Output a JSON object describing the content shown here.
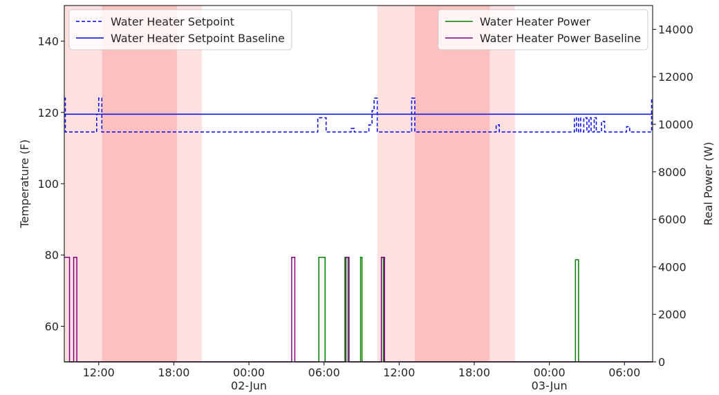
{
  "chart_data": {
    "type": "line",
    "title": "",
    "xlabel": "",
    "ylabel_left": "Temperature (F)",
    "ylabel_right": "Real Power (W)",
    "x_range": [
      "2023-06-01T09:15",
      "2023-06-03T08:15"
    ],
    "y_left_range": [
      50,
      150
    ],
    "y_right_range": [
      0,
      15000
    ],
    "x_ticks": [
      {
        "t": "2023-06-01T12:00",
        "label": "12:00",
        "sublabel": ""
      },
      {
        "t": "2023-06-01T18:00",
        "label": "18:00",
        "sublabel": ""
      },
      {
        "t": "2023-06-02T00:00",
        "label": "00:00",
        "sublabel": "02-Jun"
      },
      {
        "t": "2023-06-02T06:00",
        "label": "06:00",
        "sublabel": ""
      },
      {
        "t": "2023-06-02T12:00",
        "label": "12:00",
        "sublabel": ""
      },
      {
        "t": "2023-06-02T18:00",
        "label": "18:00",
        "sublabel": ""
      },
      {
        "t": "2023-06-03T00:00",
        "label": "00:00",
        "sublabel": "03-Jun"
      },
      {
        "t": "2023-06-03T06:00",
        "label": "06:00",
        "sublabel": ""
      }
    ],
    "y_left_ticks": [
      60,
      80,
      100,
      120,
      140
    ],
    "y_right_ticks": [
      0,
      2000,
      4000,
      6000,
      8000,
      10000,
      12000,
      14000
    ],
    "shaded_regions": [
      {
        "start": "2023-06-01T09:15",
        "end": "2023-06-01T12:15",
        "color": "#fde1e1"
      },
      {
        "start": "2023-06-01T12:15",
        "end": "2023-06-01T18:15",
        "color": "#fcc0c0"
      },
      {
        "start": "2023-06-01T18:15",
        "end": "2023-06-01T20:15",
        "color": "#fde1e1"
      },
      {
        "start": "2023-06-02T10:15",
        "end": "2023-06-02T13:15",
        "color": "#fde1e1"
      },
      {
        "start": "2023-06-02T13:15",
        "end": "2023-06-02T19:15",
        "color": "#fcc0c0"
      },
      {
        "start": "2023-06-02T19:15",
        "end": "2023-06-02T21:15",
        "color": "#fde1e1"
      }
    ],
    "series": [
      {
        "name": "Water Heater Setpoint",
        "axis": "left",
        "color": "#0000ff",
        "style": "dashed",
        "step": true,
        "points": [
          [
            "2023-06-01T09:15",
            124
          ],
          [
            "2023-06-01T09:20",
            114.5
          ],
          [
            "2023-06-01T11:50",
            119.5
          ],
          [
            "2023-06-01T12:00",
            124
          ],
          [
            "2023-06-01T12:15",
            114.5
          ],
          [
            "2023-06-02T05:30",
            118.5
          ],
          [
            "2023-06-02T06:10",
            114.5
          ],
          [
            "2023-06-02T08:10",
            115.5
          ],
          [
            "2023-06-02T08:25",
            114.5
          ],
          [
            "2023-06-02T09:35",
            116.5
          ],
          [
            "2023-06-02T09:50",
            120.5
          ],
          [
            "2023-06-02T10:00",
            124
          ],
          [
            "2023-06-02T10:15",
            114.5
          ],
          [
            "2023-06-02T13:00",
            124
          ],
          [
            "2023-06-02T13:15",
            114.5
          ],
          [
            "2023-06-02T19:45",
            116.5
          ],
          [
            "2023-06-02T20:00",
            114.5
          ],
          [
            "2023-06-03T02:00",
            118.5
          ],
          [
            "2023-06-03T02:10",
            114.5
          ],
          [
            "2023-06-03T02:20",
            118.5
          ],
          [
            "2023-06-03T02:30",
            114.5
          ],
          [
            "2023-06-03T02:45",
            118.5
          ],
          [
            "2023-06-03T03:00",
            114.5
          ],
          [
            "2023-06-03T03:10",
            118.5
          ],
          [
            "2023-06-03T03:20",
            114.5
          ],
          [
            "2023-06-03T03:35",
            118.5
          ],
          [
            "2023-06-03T03:45",
            114.5
          ],
          [
            "2023-06-03T04:10",
            117.5
          ],
          [
            "2023-06-03T04:25",
            114.5
          ],
          [
            "2023-06-03T06:10",
            116
          ],
          [
            "2023-06-03T06:25",
            114.5
          ],
          [
            "2023-06-03T08:10",
            124
          ],
          [
            "2023-06-03T08:15",
            124
          ]
        ]
      },
      {
        "name": "Water Heater Setpoint Baseline",
        "axis": "left",
        "color": "#0000ff",
        "style": "solid",
        "step": true,
        "points": [
          [
            "2023-06-01T09:15",
            119.5
          ],
          [
            "2023-06-03T08:15",
            119.5
          ]
        ]
      },
      {
        "name": "Water Heater Power",
        "axis": "right",
        "color": "#008000",
        "style": "solid",
        "step": true,
        "points": [
          [
            "2023-06-01T09:15",
            0
          ],
          [
            "2023-06-02T05:35",
            4400
          ],
          [
            "2023-06-02T06:05",
            0
          ],
          [
            "2023-06-02T07:40",
            4400
          ],
          [
            "2023-06-02T07:55",
            0
          ],
          [
            "2023-06-02T08:55",
            4400
          ],
          [
            "2023-06-02T09:02",
            0
          ],
          [
            "2023-06-02T10:35",
            4400
          ],
          [
            "2023-06-02T10:45",
            0
          ],
          [
            "2023-06-03T02:05",
            4300
          ],
          [
            "2023-06-03T02:20",
            0
          ],
          [
            "2023-06-03T08:15",
            0
          ]
        ]
      },
      {
        "name": "Water Heater Power Baseline",
        "axis": "right",
        "color": "#800080",
        "style": "solid",
        "step": true,
        "points": [
          [
            "2023-06-01T09:15",
            4400
          ],
          [
            "2023-06-01T09:40",
            0
          ],
          [
            "2023-06-01T10:00",
            4400
          ],
          [
            "2023-06-01T10:15",
            0
          ],
          [
            "2023-06-02T03:25",
            4400
          ],
          [
            "2023-06-02T03:40",
            0
          ],
          [
            "2023-06-02T07:45",
            4400
          ],
          [
            "2023-06-02T08:00",
            0
          ],
          [
            "2023-06-02T10:35",
            4400
          ],
          [
            "2023-06-02T10:50",
            0
          ],
          [
            "2023-06-03T08:15",
            0
          ]
        ]
      }
    ],
    "legends": [
      {
        "position": "upper left",
        "entries": [
          "Water Heater Setpoint",
          "Water Heater Setpoint Baseline"
        ]
      },
      {
        "position": "upper right",
        "entries": [
          "Water Heater Power",
          "Water Heater Power Baseline"
        ]
      }
    ]
  }
}
